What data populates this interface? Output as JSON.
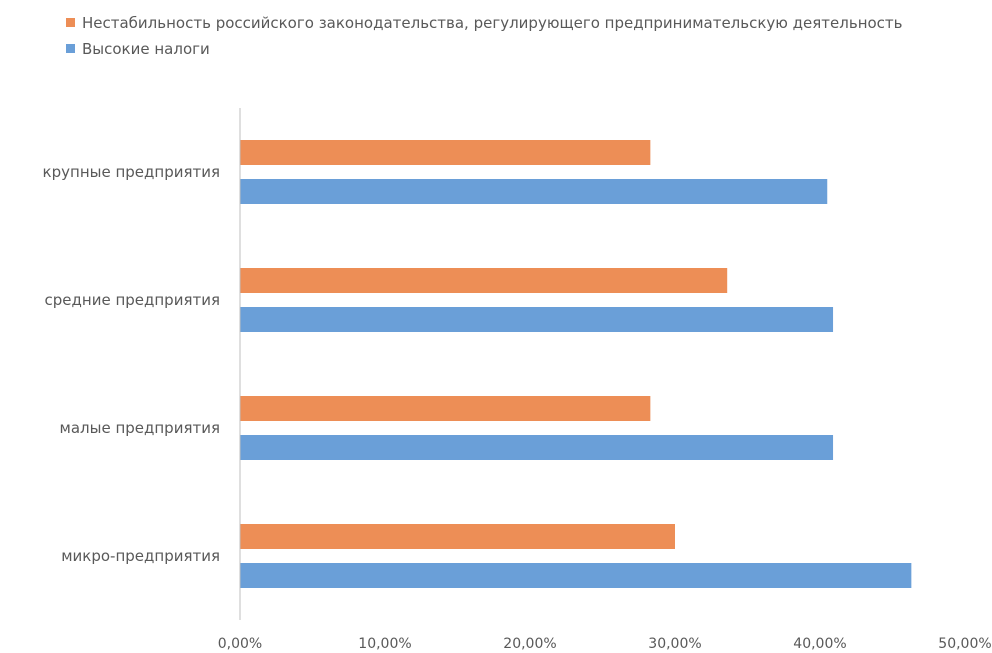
{
  "chart_data": {
    "type": "bar",
    "orientation": "horizontal",
    "categories": [
      "крупные предприятия",
      "средние предприятия",
      "малые предприятия",
      "микро-предприятия"
    ],
    "series": [
      {
        "name": "Нестабильность российского законодательства, регулирующего предпринимательскую деятельность",
        "color": "#ED8E56",
        "values": [
          28.3,
          33.6,
          28.3,
          30.0
        ]
      },
      {
        "name": "Высокие налоги",
        "color": "#6A9FD8",
        "values": [
          40.5,
          40.9,
          40.9,
          46.3
        ]
      }
    ],
    "xlim": [
      0,
      50
    ],
    "xticks": [
      0,
      10,
      20,
      30,
      40,
      50
    ],
    "xtick_labels": [
      "0,00%",
      "10,00%",
      "20,00%",
      "30,00%",
      "40,00%",
      "50,00%"
    ],
    "legend_position": "top-left",
    "grid": false
  }
}
